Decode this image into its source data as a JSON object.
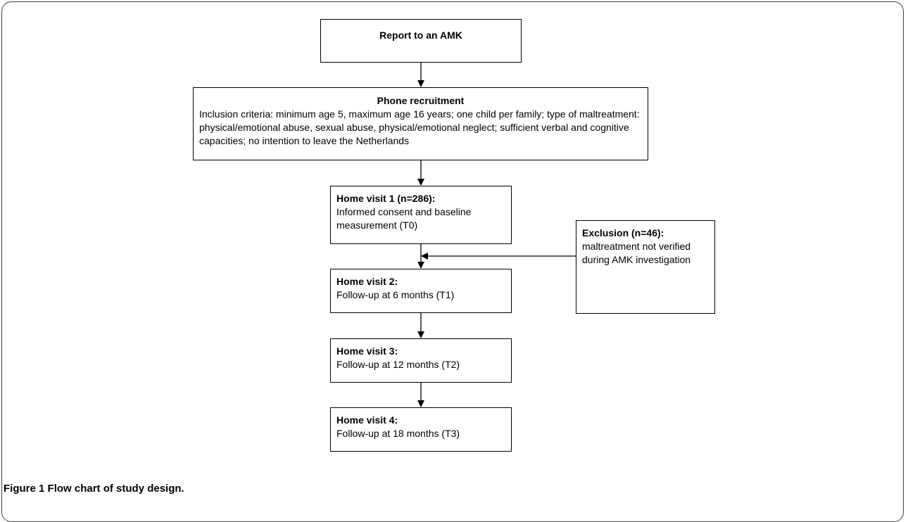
{
  "report": {
    "title": "Report to an AMK"
  },
  "recruitment": {
    "title": "Phone recruitment",
    "text": "Inclusion criteria: minimum age 5, maximum age 16 years; one child per family; type of maltreatment: physical/emotional abuse, sexual abuse, physical/emotional neglect; sufficient verbal and cognitive capacities; no intention to leave the Netherlands"
  },
  "visit1": {
    "title": "Home visit 1 (n=286):",
    "text": "Informed consent and baseline measurement (T0)"
  },
  "visit2": {
    "title": "Home visit 2:",
    "text": "Follow-up at 6 months (T1)"
  },
  "visit3": {
    "title": "Home visit 3:",
    "text": "Follow-up at 12 months (T2)"
  },
  "visit4": {
    "title": "Home visit 4:",
    "text": "Follow-up at 18 months (T3)"
  },
  "exclusion": {
    "title": "Exclusion (n=46):",
    "text": "maltreatment not verified during AMK investigation"
  },
  "caption": {
    "label": "Figure 1",
    "text": "Flow chart of study design."
  }
}
